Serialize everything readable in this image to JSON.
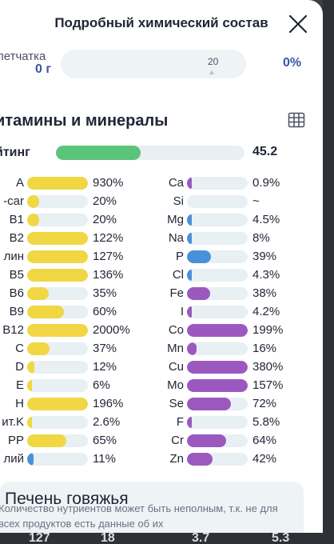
{
  "header": {
    "title": "Подробный химический состав"
  },
  "fiber": {
    "name": "летчатка",
    "amount": "0 г",
    "marker": "20",
    "percent": "0%"
  },
  "vitamins": {
    "title": "итамины и минералы",
    "rating_label": "йтинг",
    "rating_value": "45.2",
    "rating_fraction": 0.45
  },
  "left_column": [
    {
      "name": "A",
      "value": "930%",
      "fill": 1.0,
      "color": "#f0d743"
    },
    {
      "name": "-car",
      "value": "20%",
      "fill": 0.2,
      "color": "#f0d743"
    },
    {
      "name": "B1",
      "value": "20%",
      "fill": 0.2,
      "color": "#f0d743"
    },
    {
      "name": "B2",
      "value": "122%",
      "fill": 1.0,
      "color": "#f0d743"
    },
    {
      "name": "лин",
      "value": "127%",
      "fill": 1.0,
      "color": "#f0d743"
    },
    {
      "name": "B5",
      "value": "136%",
      "fill": 1.0,
      "color": "#f0d743"
    },
    {
      "name": "B6",
      "value": "35%",
      "fill": 0.35,
      "color": "#f0d743"
    },
    {
      "name": "B9",
      "value": "60%",
      "fill": 0.6,
      "color": "#f0d743"
    },
    {
      "name": "B12",
      "value": "2000%",
      "fill": 1.0,
      "color": "#f0d743"
    },
    {
      "name": "C",
      "value": "37%",
      "fill": 0.37,
      "color": "#f0d743"
    },
    {
      "name": "D",
      "value": "12%",
      "fill": 0.12,
      "color": "#f0d743"
    },
    {
      "name": "E",
      "value": "6%",
      "fill": 0.06,
      "color": "#f0d743"
    },
    {
      "name": "H",
      "value": "196%",
      "fill": 1.0,
      "color": "#f0d743"
    },
    {
      "name": "ит.K",
      "value": "2.6%",
      "fill": 0.03,
      "color": "#f0d743"
    },
    {
      "name": "PP",
      "value": "65%",
      "fill": 0.65,
      "color": "#f0d743"
    },
    {
      "name": "лий",
      "value": "11%",
      "fill": 0.11,
      "color": "#4a90d9"
    }
  ],
  "right_column": [
    {
      "name": "Ca",
      "value": "0.9%",
      "fill": 0.01,
      "color": "#9b59c0"
    },
    {
      "name": "Si",
      "value": "~",
      "fill": 0,
      "color": "#9b59c0"
    },
    {
      "name": "Mg",
      "value": "4.5%",
      "fill": 0.045,
      "color": "#4a90d9"
    },
    {
      "name": "Na",
      "value": "8%",
      "fill": 0.08,
      "color": "#4a90d9"
    },
    {
      "name": "P",
      "value": "39%",
      "fill": 0.39,
      "color": "#4a90d9"
    },
    {
      "name": "Cl",
      "value": "4.3%",
      "fill": 0.043,
      "color": "#4a90d9"
    },
    {
      "name": "Fe",
      "value": "38%",
      "fill": 0.38,
      "color": "#9b59c0"
    },
    {
      "name": "I",
      "value": "4.2%",
      "fill": 0.042,
      "color": "#9b59c0"
    },
    {
      "name": "Co",
      "value": "199%",
      "fill": 1.0,
      "color": "#9b59c0"
    },
    {
      "name": "Mn",
      "value": "16%",
      "fill": 0.16,
      "color": "#9b59c0"
    },
    {
      "name": "Cu",
      "value": "380%",
      "fill": 1.0,
      "color": "#9b59c0"
    },
    {
      "name": "Mo",
      "value": "157%",
      "fill": 1.0,
      "color": "#9b59c0"
    },
    {
      "name": "Se",
      "value": "72%",
      "fill": 0.72,
      "color": "#9b59c0"
    },
    {
      "name": "F",
      "value": "5.8%",
      "fill": 0.058,
      "color": "#9b59c0"
    },
    {
      "name": "Cr",
      "value": "64%",
      "fill": 0.64,
      "color": "#9b59c0"
    },
    {
      "name": "Zn",
      "value": "42%",
      "fill": 0.42,
      "color": "#9b59c0"
    }
  ],
  "card": {
    "title": "Печень говяжья",
    "note": "Количество нутриентов может быть неполным, т.к. не для всех продуктов есть данные об их"
  },
  "bottom": {
    "v1": "127",
    "v2": "18",
    "v3": "3.7",
    "v4": "5.3"
  },
  "icons": {
    "close": "close-icon",
    "table": "table-grid-icon"
  }
}
